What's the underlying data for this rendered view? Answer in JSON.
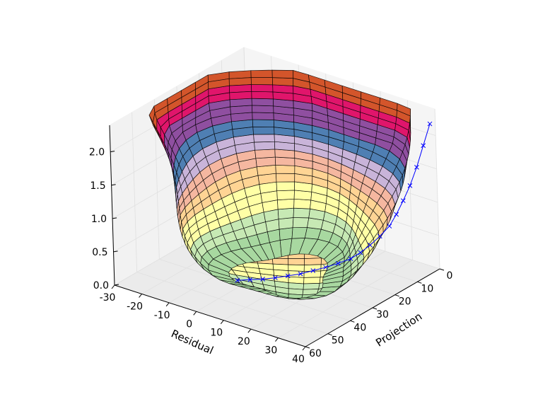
{
  "chart_data": {
    "type": "surface3d",
    "title": "",
    "axes": {
      "x": {
        "label": "Residual",
        "lim": [
          -30,
          40
        ],
        "ticks": [
          -30,
          -20,
          -10,
          0,
          10,
          20,
          30,
          40
        ]
      },
      "y": {
        "label": "Projection",
        "lim": [
          0,
          60
        ],
        "ticks": [
          0,
          10,
          20,
          30,
          40,
          50,
          60
        ]
      },
      "z": {
        "label": "",
        "lim": [
          0,
          2.3
        ],
        "ticks": [
          "0.0",
          "0.5",
          "1.0",
          "1.5",
          "2.0"
        ]
      }
    },
    "grid": true,
    "surface": {
      "description_values": {
        "z_max": 2.3,
        "z_at_base": 0.0,
        "residual_range_at_base": [
          -22,
          38
        ],
        "projection_range": [
          0,
          60
        ]
      },
      "colormap": [
        "#a8d8a0",
        "#c7e9b4",
        "#ffffa6",
        "#ffd494",
        "#f5b7a0",
        "#c9b4d9",
        "#4f7fb3",
        "#8f4fa0",
        "#e0156b",
        "#d3552b"
      ]
    },
    "series": [
      {
        "marker": "x",
        "color": "#0000ff",
        "points": [
          [
            38,
            0,
            2.15
          ],
          [
            37,
            2,
            1.85
          ],
          [
            36,
            4,
            1.55
          ],
          [
            35,
            6,
            1.3
          ],
          [
            34,
            8,
            1.1
          ],
          [
            33,
            10,
            0.92
          ],
          [
            32,
            12,
            0.77
          ],
          [
            30,
            14,
            0.63
          ],
          [
            28,
            16,
            0.51
          ],
          [
            26,
            18,
            0.41
          ],
          [
            24,
            20,
            0.33
          ],
          [
            21,
            22,
            0.26
          ],
          [
            18,
            24,
            0.2
          ],
          [
            15,
            26,
            0.15
          ],
          [
            12,
            28,
            0.1
          ],
          [
            9,
            30,
            0.07
          ],
          [
            6,
            32,
            0.04
          ],
          [
            3,
            34,
            0.02
          ],
          [
            0,
            36,
            0.01
          ],
          [
            -3,
            38,
            0.0
          ]
        ]
      }
    ]
  }
}
